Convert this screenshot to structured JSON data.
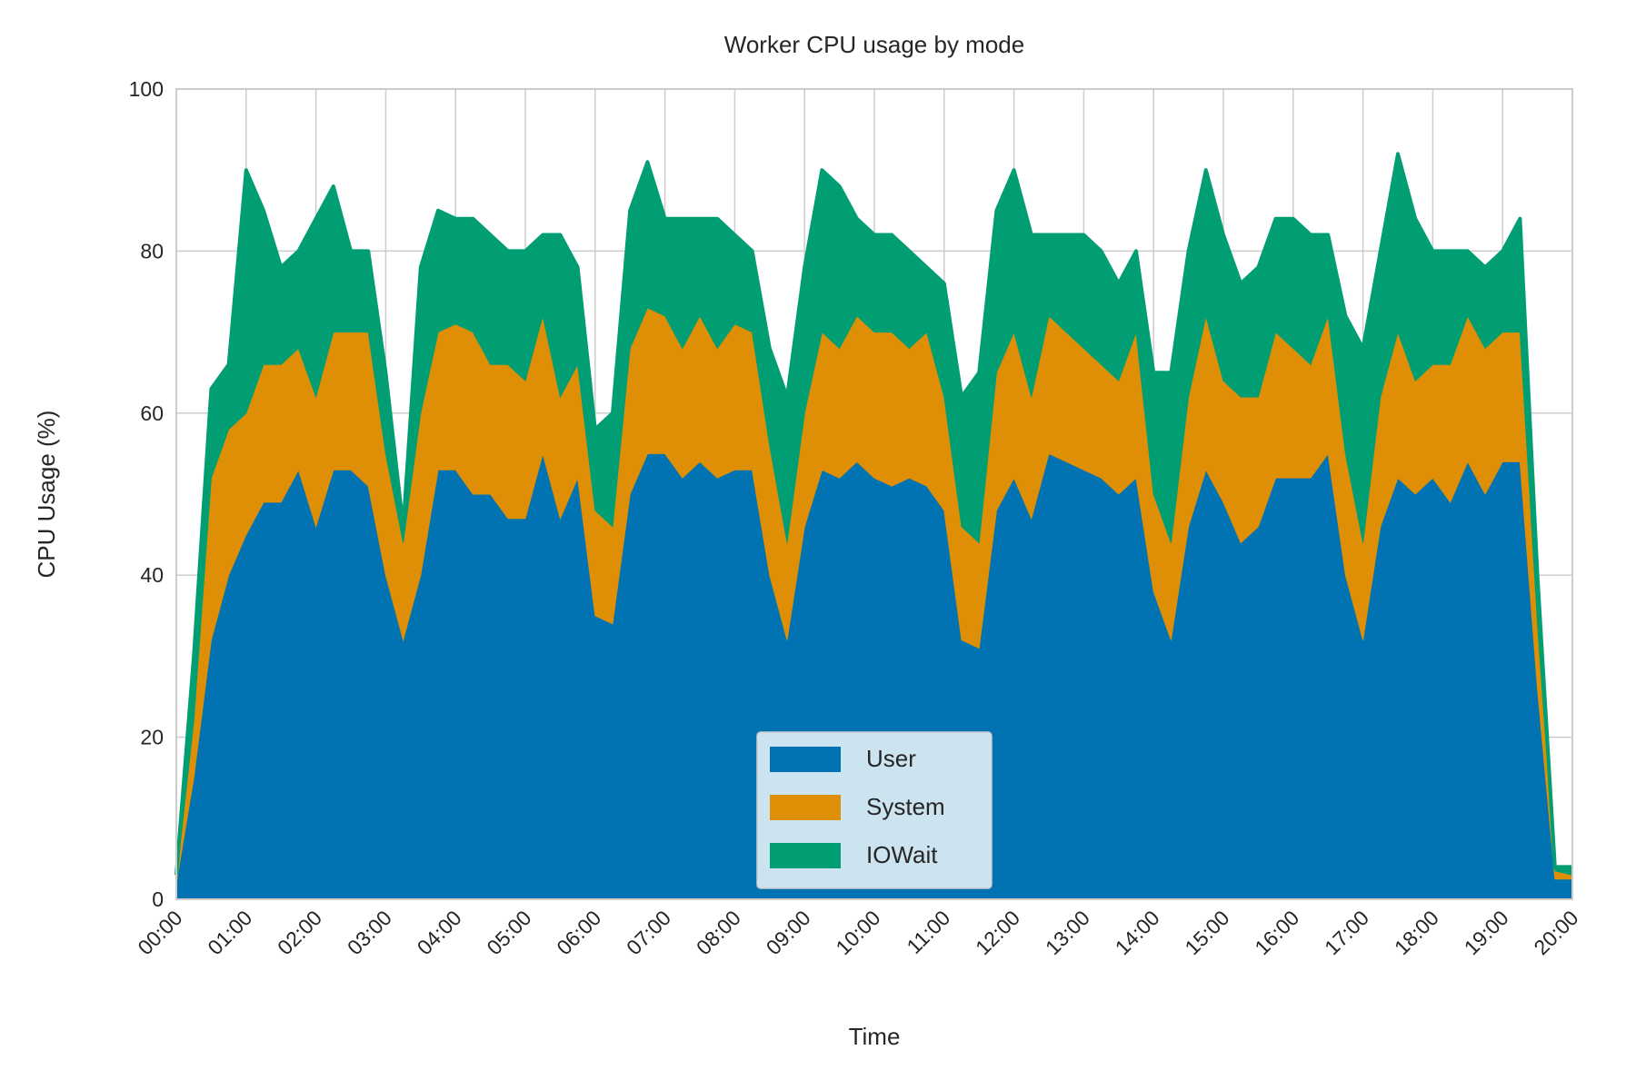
{
  "chart_data": {
    "type": "stacked_area",
    "title": "Worker CPU usage by mode",
    "x_label": "Time",
    "y_label": "CPU Usage (%)",
    "x": [
      "00:00",
      "00:15",
      "00:30",
      "00:45",
      "01:00",
      "01:15",
      "01:30",
      "01:45",
      "02:00",
      "02:15",
      "02:30",
      "02:45",
      "03:00",
      "03:15",
      "03:30",
      "03:45",
      "04:00",
      "04:15",
      "04:30",
      "04:45",
      "05:00",
      "05:15",
      "05:30",
      "05:45",
      "06:00",
      "06:15",
      "06:30",
      "06:45",
      "07:00",
      "07:15",
      "07:30",
      "07:45",
      "08:00",
      "08:15",
      "08:30",
      "08:45",
      "09:00",
      "09:15",
      "09:30",
      "09:45",
      "10:00",
      "10:15",
      "10:30",
      "10:45",
      "11:00",
      "11:15",
      "11:30",
      "11:45",
      "12:00",
      "12:15",
      "12:30",
      "12:45",
      "13:00",
      "13:15",
      "13:30",
      "13:45",
      "14:00",
      "14:15",
      "14:30",
      "14:45",
      "15:00",
      "15:15",
      "15:30",
      "15:45",
      "16:00",
      "16:15",
      "16:30",
      "16:45",
      "17:00",
      "17:15",
      "17:30",
      "17:45",
      "18:00",
      "18:15",
      "18:30",
      "18:45",
      "19:00",
      "19:15",
      "19:30",
      "19:45",
      "20:00"
    ],
    "series": [
      {
        "name": "User",
        "color": "#0173b2",
        "values": [
          2,
          15,
          32,
          40,
          45,
          49,
          49,
          53,
          46,
          53,
          53,
          51,
          40,
          32,
          40,
          53,
          53,
          50,
          50,
          47,
          47,
          55,
          47,
          52,
          35,
          34,
          50,
          55,
          55,
          52,
          54,
          52,
          53,
          53,
          40,
          32,
          46,
          53,
          52,
          54,
          52,
          51,
          52,
          51,
          48,
          32,
          31,
          48,
          52,
          47,
          55,
          54,
          53,
          52,
          50,
          52,
          38,
          32,
          46,
          53,
          49,
          44,
          46,
          52,
          52,
          52,
          55,
          40,
          32,
          46,
          52,
          50,
          52,
          49,
          54,
          50,
          54,
          54,
          26,
          2.5,
          2.5
        ]
      },
      {
        "name": "System",
        "color": "#de8f05",
        "values": [
          0.5,
          7,
          20,
          18,
          15,
          17,
          17,
          15,
          16,
          17,
          17,
          19,
          15,
          12,
          20,
          17,
          18,
          20,
          16,
          19,
          17,
          17,
          15,
          14,
          13,
          12,
          18,
          18,
          17,
          16,
          18,
          16,
          18,
          17,
          16,
          12,
          14,
          17,
          16,
          18,
          18,
          19,
          16,
          19,
          14,
          14,
          13,
          17,
          18,
          15,
          17,
          16,
          15,
          14,
          14,
          18,
          12,
          12,
          16,
          19,
          15,
          18,
          16,
          18,
          16,
          14,
          17,
          15,
          12,
          16,
          18,
          14,
          14,
          17,
          18,
          18,
          16,
          16,
          8,
          1,
          0.5
        ]
      },
      {
        "name": "IOWait",
        "color": "#029e73",
        "values": [
          0.5,
          8,
          11,
          8,
          30,
          19,
          12,
          12,
          22,
          18,
          10,
          10,
          10,
          2,
          18,
          15,
          13,
          14,
          16,
          14,
          16,
          10,
          20,
          12,
          10,
          14,
          17,
          18,
          12,
          16,
          12,
          16,
          11,
          10,
          12,
          18,
          18,
          20,
          20,
          12,
          12,
          12,
          12,
          8,
          14,
          16,
          21,
          20,
          20,
          20,
          10,
          12,
          14,
          14,
          12,
          10,
          15,
          21,
          18,
          18,
          18,
          14,
          16,
          14,
          16,
          16,
          10,
          17,
          24,
          18,
          22,
          20,
          14,
          14,
          8,
          10,
          10,
          14,
          6,
          0.5,
          1
        ]
      }
    ],
    "xlim": [
      "00:00",
      "20:00"
    ],
    "xticks": [
      "00:00",
      "01:00",
      "02:00",
      "03:00",
      "04:00",
      "05:00",
      "06:00",
      "07:00",
      "08:00",
      "09:00",
      "10:00",
      "11:00",
      "12:00",
      "13:00",
      "14:00",
      "15:00",
      "16:00",
      "17:00",
      "18:00",
      "19:00",
      "20:00"
    ],
    "ylim": [
      0,
      100
    ],
    "yticks": [
      0,
      20,
      40,
      60,
      80,
      100
    ],
    "grid": true,
    "legend": "lower center"
  }
}
